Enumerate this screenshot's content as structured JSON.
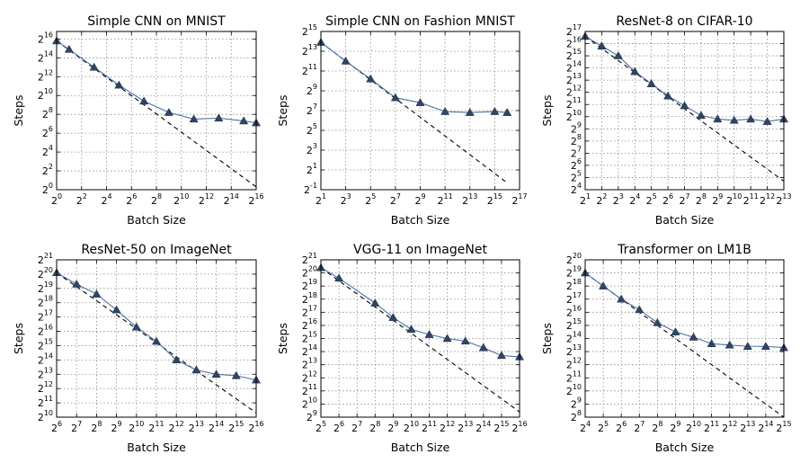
{
  "chart_data": [
    {
      "type": "line",
      "title": "Simple CNN on MNIST",
      "xlabel": "Batch Size",
      "ylabel": "Steps",
      "x_scale": "log2",
      "y_scale": "log2",
      "xlim_exp": [
        0,
        16
      ],
      "ylim_exp": [
        0,
        16.8
      ],
      "xticks_exp": [
        0,
        2,
        4,
        6,
        8,
        10,
        12,
        14,
        16
      ],
      "yticks_exp": [
        0,
        2,
        4,
        6,
        8,
        10,
        12,
        14,
        16
      ],
      "grid": true,
      "series": [
        {
          "x_exp": [
            0,
            1,
            3,
            5,
            7,
            9,
            11,
            13,
            15,
            16
          ],
          "y_exp": [
            15.8,
            14.9,
            13.0,
            11.1,
            9.4,
            8.2,
            7.5,
            7.6,
            7.3,
            7.1
          ]
        }
      ],
      "reference_line": {
        "x_exp": [
          0,
          16
        ],
        "y_exp": [
          15.8,
          0.3
        ]
      }
    },
    {
      "type": "line",
      "title": "Simple CNN on Fashion MNIST",
      "xlabel": "Batch Size",
      "ylabel": "Steps",
      "x_scale": "log2",
      "y_scale": "log2",
      "xlim_exp": [
        1,
        17
      ],
      "ylim_exp": [
        -1,
        15
      ],
      "xticks_exp": [
        1,
        3,
        5,
        7,
        9,
        11,
        13,
        15,
        17
      ],
      "yticks_exp": [
        -1,
        1,
        3,
        5,
        7,
        9,
        11,
        13,
        15
      ],
      "grid": true,
      "series": [
        {
          "x_exp": [
            1,
            3,
            5,
            7,
            9,
            11,
            13,
            15,
            16
          ],
          "y_exp": [
            13.9,
            12.0,
            10.2,
            8.3,
            7.8,
            6.9,
            6.8,
            6.9,
            6.8
          ]
        }
      ],
      "reference_line": {
        "x_exp": [
          1,
          16
        ],
        "y_exp": [
          13.9,
          -0.3
        ]
      }
    },
    {
      "type": "line",
      "title": "ResNet-8 on CIFAR-10",
      "xlabel": "Batch Size",
      "ylabel": "Steps",
      "x_scale": "log2",
      "y_scale": "log2",
      "xlim_exp": [
        1,
        13
      ],
      "ylim_exp": [
        4,
        17
      ],
      "xticks_exp": [
        1,
        2,
        3,
        4,
        5,
        6,
        7,
        8,
        9,
        10,
        11,
        12,
        13
      ],
      "yticks_exp": [
        4,
        5,
        6,
        7,
        8,
        9,
        10,
        11,
        12,
        13,
        14,
        15,
        16,
        17
      ],
      "grid": true,
      "series": [
        {
          "x_exp": [
            1,
            2,
            3,
            4,
            5,
            6,
            7,
            8,
            9,
            10,
            11,
            12,
            13
          ],
          "y_exp": [
            16.6,
            15.8,
            15.0,
            13.7,
            12.7,
            11.7,
            10.9,
            10.1,
            9.8,
            9.7,
            9.8,
            9.6,
            9.8
          ]
        }
      ],
      "reference_line": {
        "x_exp": [
          1,
          13
        ],
        "y_exp": [
          16.6,
          4.7
        ]
      }
    },
    {
      "type": "line",
      "title": "ResNet-50 on ImageNet",
      "xlabel": "Batch Size",
      "ylabel": "Steps",
      "x_scale": "log2",
      "y_scale": "log2",
      "xlim_exp": [
        6,
        16
      ],
      "ylim_exp": [
        10,
        21
      ],
      "xticks_exp": [
        6,
        7,
        8,
        9,
        10,
        11,
        12,
        13,
        14,
        15,
        16
      ],
      "yticks_exp": [
        10,
        11,
        12,
        13,
        14,
        15,
        16,
        17,
        18,
        19,
        20,
        21
      ],
      "grid": true,
      "series": [
        {
          "x_exp": [
            6,
            7,
            8,
            9,
            10,
            11,
            12,
            13,
            14,
            15,
            16
          ],
          "y_exp": [
            20.1,
            19.3,
            18.6,
            17.5,
            16.3,
            15.3,
            14.0,
            13.3,
            13.0,
            12.9,
            12.6
          ]
        }
      ],
      "reference_line": {
        "x_exp": [
          6,
          16
        ],
        "y_exp": [
          20.1,
          10.3
        ]
      }
    },
    {
      "type": "line",
      "title": "VGG-11 on ImageNet",
      "xlabel": "Batch Size",
      "ylabel": "Steps",
      "x_scale": "log2",
      "y_scale": "log2",
      "xlim_exp": [
        5,
        16
      ],
      "ylim_exp": [
        9,
        21
      ],
      "xticks_exp": [
        5,
        6,
        7,
        8,
        9,
        10,
        11,
        12,
        13,
        14,
        15,
        16
      ],
      "yticks_exp": [
        9,
        10,
        11,
        12,
        13,
        14,
        15,
        16,
        17,
        18,
        19,
        20,
        21
      ],
      "grid": true,
      "series": [
        {
          "x_exp": [
            5,
            6,
            8,
            9,
            10,
            11,
            12,
            13,
            14,
            15,
            16
          ],
          "y_exp": [
            20.4,
            19.6,
            17.7,
            16.6,
            15.7,
            15.3,
            15.0,
            14.8,
            14.3,
            13.7,
            13.6
          ]
        }
      ],
      "reference_line": {
        "x_exp": [
          5,
          16
        ],
        "y_exp": [
          20.4,
          9.4
        ]
      }
    },
    {
      "type": "line",
      "title": "Transformer on LM1B",
      "xlabel": "Batch Size",
      "ylabel": "Steps",
      "x_scale": "log2",
      "y_scale": "log2",
      "xlim_exp": [
        4,
        15
      ],
      "ylim_exp": [
        8,
        20
      ],
      "xticks_exp": [
        4,
        5,
        6,
        7,
        8,
        9,
        10,
        11,
        12,
        13,
        14,
        15
      ],
      "yticks_exp": [
        8,
        9,
        10,
        11,
        12,
        13,
        14,
        15,
        16,
        17,
        18,
        19,
        20
      ],
      "grid": true,
      "series": [
        {
          "x_exp": [
            4,
            5,
            6,
            7,
            8,
            9,
            10,
            11,
            12,
            13,
            14,
            15
          ],
          "y_exp": [
            19.0,
            18.0,
            17.0,
            16.2,
            15.2,
            14.5,
            14.1,
            13.6,
            13.5,
            13.4,
            13.4,
            13.3
          ]
        }
      ],
      "reference_line": {
        "x_exp": [
          4,
          15
        ],
        "y_exp": [
          19.0,
          8.0
        ]
      }
    }
  ],
  "style": {
    "series_color": "#4a72a6",
    "marker_fill": "#2f4565",
    "reference_color": "#000000",
    "grid_color": "#8c8c8c"
  }
}
